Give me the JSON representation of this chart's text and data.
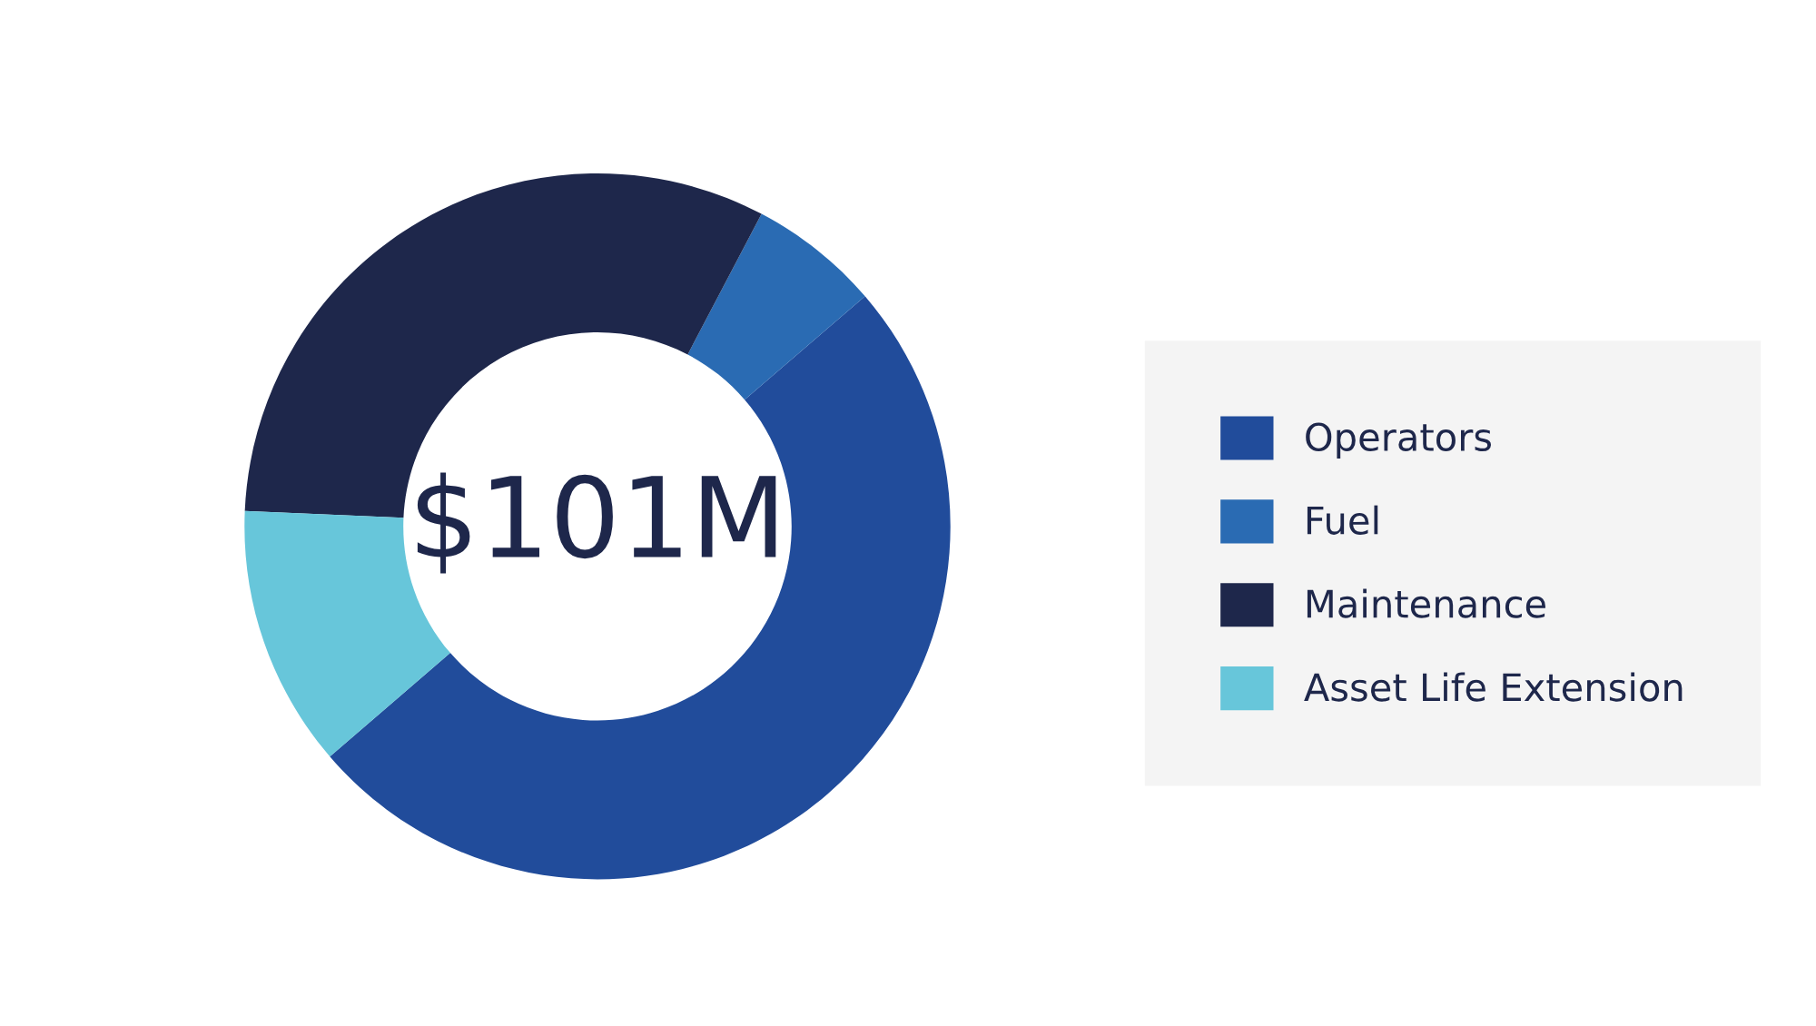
{
  "chart_data": {
    "type": "donut",
    "categories": [
      "Operators",
      "Fuel",
      "Maintenance",
      "Asset Life Extension"
    ],
    "values": [
      50,
      6,
      32,
      12
    ],
    "colors": [
      "#214c9b",
      "#2a6bb3",
      "#1e274b",
      "#67c6da"
    ],
    "annotations": [
      "$101M"
    ],
    "legend": "right"
  }
}
